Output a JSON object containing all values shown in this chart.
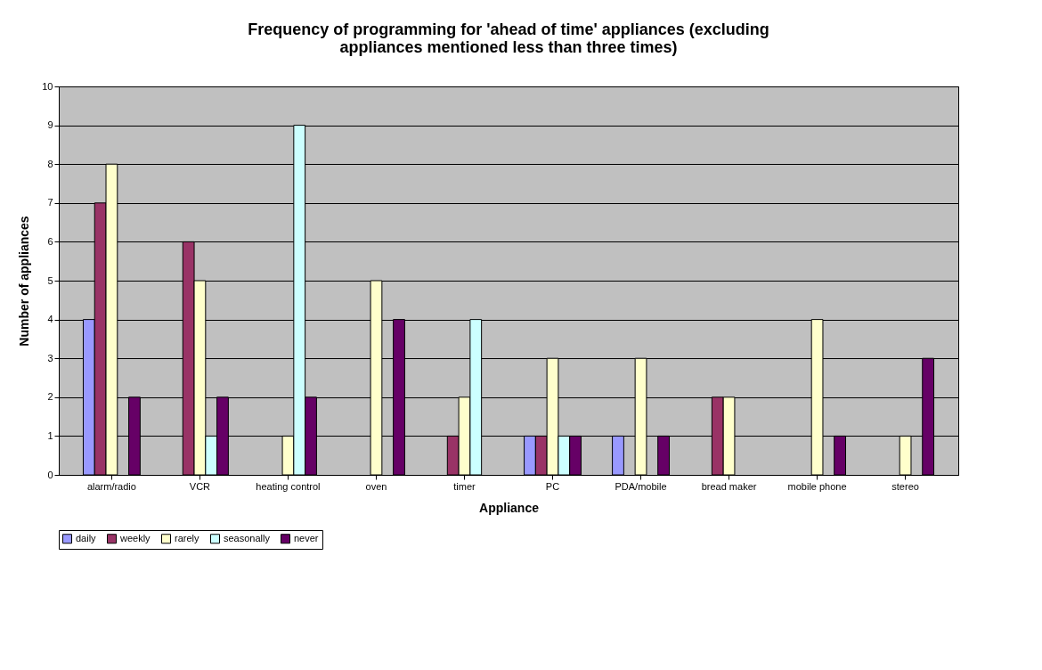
{
  "chart_data": {
    "type": "bar",
    "title": "Frequency of programming for 'ahead of time' appliances (excluding appliances mentioned less than three times)",
    "xlabel": "Appliance",
    "ylabel": "Number of appliances",
    "categories": [
      "alarm/radio",
      "VCR",
      "heating control",
      "oven",
      "timer",
      "PC",
      "PDA/mobile",
      "bread maker",
      "mobile phone",
      "stereo"
    ],
    "series": [
      {
        "name": "daily",
        "color": "#9999ff",
        "values": [
          4,
          null,
          null,
          null,
          null,
          1,
          1,
          null,
          null,
          null
        ]
      },
      {
        "name": "weekly",
        "color": "#993366",
        "values": [
          7,
          6,
          null,
          null,
          1,
          1,
          null,
          2,
          null,
          null
        ]
      },
      {
        "name": "rarely",
        "color": "#ffffcc",
        "values": [
          8,
          5,
          1,
          5,
          2,
          3,
          3,
          2,
          4,
          1
        ]
      },
      {
        "name": "seasonally",
        "color": "#ccffff",
        "values": [
          null,
          1,
          9,
          null,
          4,
          1,
          null,
          null,
          null,
          null
        ]
      },
      {
        "name": "never",
        "color": "#660066",
        "values": [
          2,
          2,
          2,
          4,
          null,
          1,
          1,
          null,
          1,
          3
        ]
      }
    ],
    "ylim": [
      0,
      10
    ],
    "yticks": [
      0,
      1,
      2,
      3,
      4,
      5,
      6,
      7,
      8,
      9,
      10
    ],
    "grid": "y",
    "legend": "bottom"
  }
}
